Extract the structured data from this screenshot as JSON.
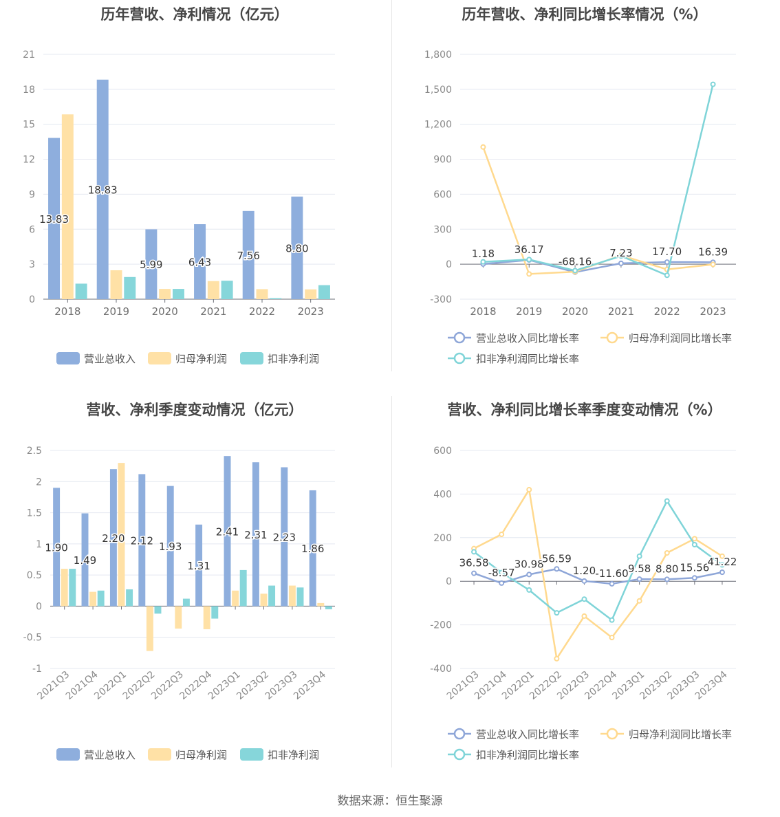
{
  "footer": "数据来源：恒生聚源",
  "colors": {
    "revenue": "#8eaedd",
    "net_profit": "#ffe1a6",
    "deducted": "#86d6da",
    "revenue_line": "#8ea6d8",
    "net_line": "#ffd98e",
    "deducted_line": "#7fd4d8"
  },
  "chart_data": [
    {
      "type": "bar",
      "title": "历年营收、净利情况（亿元）",
      "categories": [
        "2018",
        "2019",
        "2020",
        "2021",
        "2022",
        "2023"
      ],
      "ylim": [
        0,
        21
      ],
      "yticks": [
        0,
        3,
        6,
        9,
        12,
        15,
        18,
        21
      ],
      "ytick_labels": [
        "0",
        "3",
        "6",
        "9",
        "12",
        "15",
        "18",
        "21"
      ],
      "series": [
        {
          "name": "营业总收入",
          "values": [
            13.83,
            18.83,
            5.99,
            6.43,
            7.56,
            8.8
          ],
          "labels": [
            "13.83",
            "18.83",
            "5.99",
            "6.43",
            "7.56",
            "8.80"
          ]
        },
        {
          "name": "归母净利润",
          "values": [
            15.85,
            2.48,
            0.88,
            1.55,
            0.86,
            0.84
          ]
        },
        {
          "name": "扣非净利润",
          "values": [
            1.33,
            1.9,
            0.88,
            1.58,
            0.09,
            1.2
          ]
        }
      ],
      "legend": "bottom",
      "grid": true
    },
    {
      "type": "line",
      "title": "历年营收、净利同比增长率情况（%）",
      "categories": [
        "2018",
        "2019",
        "2020",
        "2021",
        "2022",
        "2023"
      ],
      "ylim": [
        -300,
        1800
      ],
      "yticks": [
        -300,
        0,
        300,
        600,
        900,
        1200,
        1500,
        1800
      ],
      "ytick_labels": [
        "-300",
        "0",
        "300",
        "600",
        "900",
        "1,200",
        "1,500",
        "1,800"
      ],
      "series": [
        {
          "name": "营业总收入同比增长率",
          "values": [
            1.18,
            36.17,
            -68.16,
            7.23,
            17.7,
            16.39
          ],
          "labels": [
            "1.18",
            "36.17",
            "-68.16",
            "7.23",
            "17.70",
            "16.39"
          ]
        },
        {
          "name": "归母净利润同比增长率",
          "values": [
            1005,
            -84,
            -65,
            76,
            -45,
            -2
          ]
        },
        {
          "name": "扣非净利润同比增长率",
          "values": [
            20,
            40,
            -55,
            70,
            -95,
            1543
          ]
        }
      ],
      "legend": "bottom",
      "grid": true
    },
    {
      "type": "bar",
      "title": "营收、净利季度变动情况（亿元）",
      "categories": [
        "2021Q3",
        "2021Q4",
        "2022Q1",
        "2022Q2",
        "2022Q3",
        "2022Q4",
        "2023Q1",
        "2023Q2",
        "2023Q3",
        "2023Q4"
      ],
      "ylim": [
        -1,
        2.5
      ],
      "yticks": [
        -1,
        -0.5,
        0,
        0.5,
        1,
        1.5,
        2,
        2.5
      ],
      "ytick_labels": [
        "-1",
        "-0.5",
        "0",
        "0.5",
        "1",
        "1.5",
        "2",
        "2.5"
      ],
      "series": [
        {
          "name": "营业总收入",
          "values": [
            1.9,
            1.49,
            2.2,
            2.12,
            1.93,
            1.31,
            2.41,
            2.31,
            2.23,
            1.86
          ],
          "labels": [
            "1.90",
            "1.49",
            "2.20",
            "2.12",
            "1.93",
            "1.31",
            "2.41",
            "2.31",
            "2.23",
            "1.86"
          ]
        },
        {
          "name": "归母净利润",
          "values": [
            0.6,
            0.23,
            2.3,
            -0.72,
            -0.36,
            -0.37,
            0.25,
            0.2,
            0.33,
            0.05
          ]
        },
        {
          "name": "扣非净利润",
          "values": [
            0.6,
            0.25,
            0.27,
            -0.12,
            0.12,
            -0.2,
            0.58,
            0.33,
            0.3,
            -0.05
          ]
        }
      ],
      "legend": "bottom",
      "grid": true
    },
    {
      "type": "line",
      "title": "营收、净利同比增长率季度变动情况（%）",
      "categories": [
        "2021Q3",
        "2021Q4",
        "2022Q1",
        "2022Q2",
        "2022Q3",
        "2022Q4",
        "2023Q1",
        "2023Q2",
        "2023Q3",
        "2023Q4"
      ],
      "ylim": [
        -400,
        600
      ],
      "yticks": [
        -400,
        -200,
        0,
        200,
        400,
        600
      ],
      "ytick_labels": [
        "-400",
        "-200",
        "0",
        "200",
        "400",
        "600"
      ],
      "series": [
        {
          "name": "营业总收入同比增长率",
          "values": [
            36.58,
            -8.57,
            30.98,
            56.59,
            1.2,
            -11.6,
            9.58,
            8.8,
            15.56,
            41.22
          ],
          "labels": [
            "36.58",
            "-8.57",
            "30.98",
            "56.59",
            "1.20",
            "-11.60",
            "9.58",
            "8.80",
            "15.56",
            "41.22"
          ]
        },
        {
          "name": "归母净利润同比增长率",
          "values": [
            150,
            215,
            420,
            -355,
            -160,
            -258,
            -90,
            130,
            195,
            115
          ]
        },
        {
          "name": "扣非净利润同比增长率",
          "values": [
            135,
            40,
            -40,
            -145,
            -82,
            -178,
            115,
            368,
            168,
            75
          ]
        }
      ],
      "legend": "bottom",
      "grid": true
    }
  ]
}
